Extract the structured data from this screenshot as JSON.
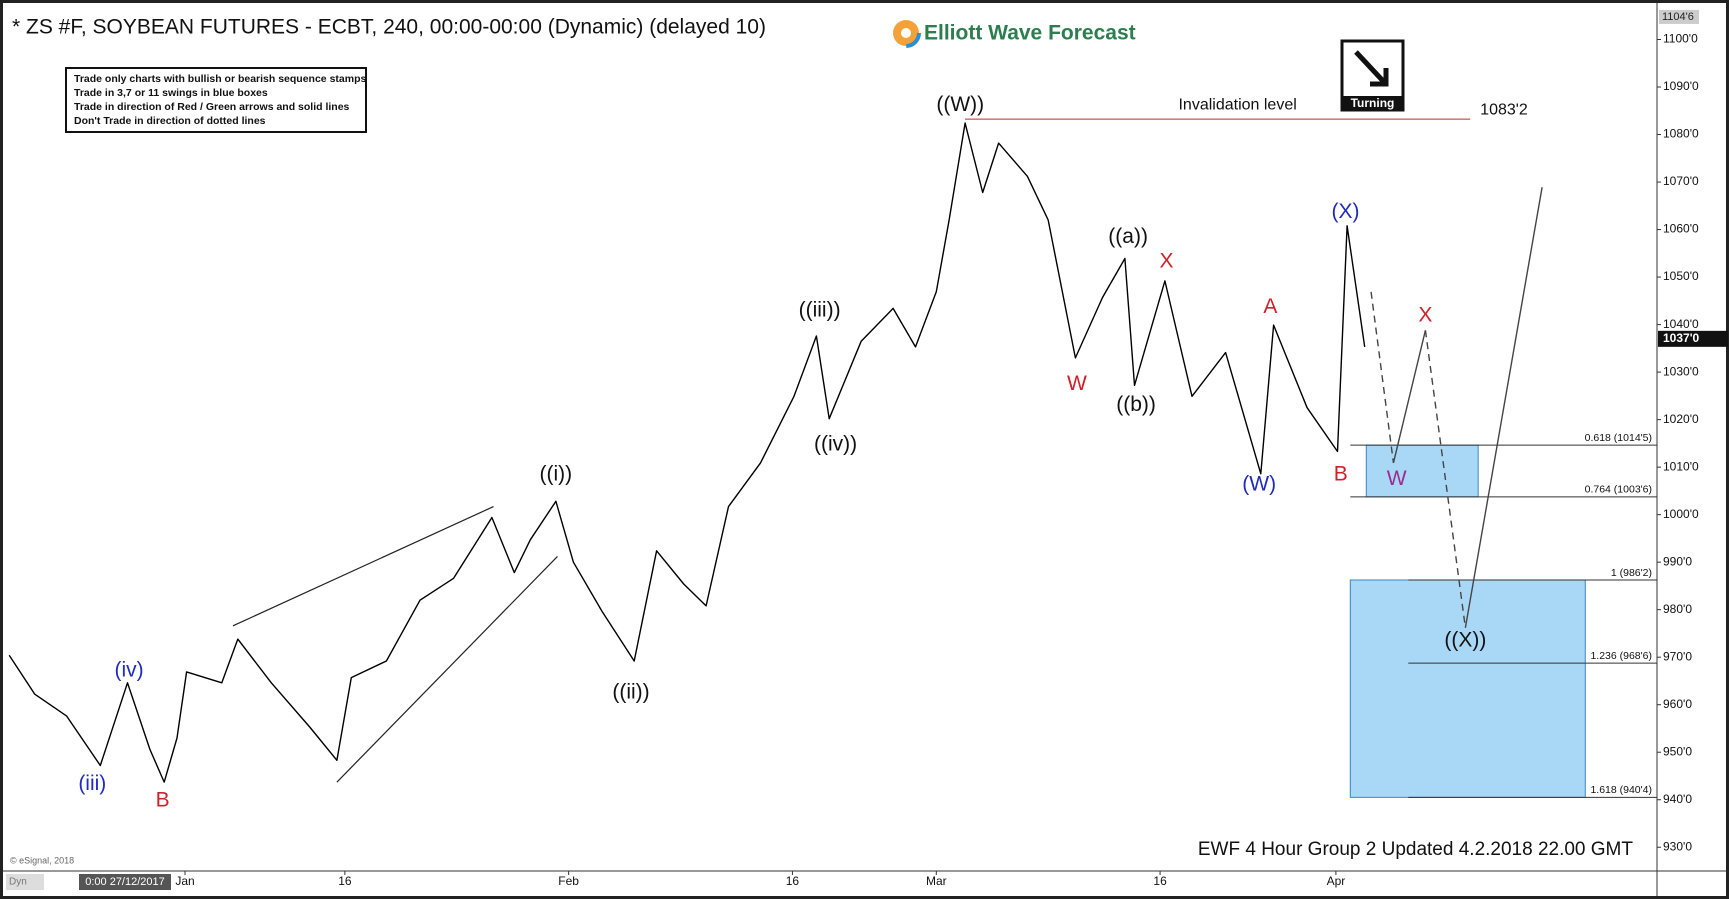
{
  "chart_data": {
    "type": "line",
    "title": "* ZS #F, SOYBEAN FUTURES - ECBT, 240, 00:00-00:00 (Dynamic) (delayed 10)",
    "logo": "Elliott Wave Forecast",
    "rules": [
      "Trade only charts with bullish or bearish sequence stamps",
      "Trade in 3,7 or 11 swings in blue boxes",
      "Trade in direction of Red / Green arrows and solid lines",
      "Don't Trade in direction of dotted lines"
    ],
    "badge": "Turning",
    "footer": "EWF 4 Hour Group 2 Updated 4.2.2018 22.00 GMT",
    "copyright": "© eSignal, 2018",
    "start_date": "0:00 27/12/2017",
    "mode": "Dyn",
    "color": "#000000",
    "x": [
      -11,
      -9.4,
      -7.4,
      -5.3,
      -3.6,
      -2.2,
      -1.3,
      -0.5,
      0.1,
      2.3,
      3.3,
      5.4,
      7.8,
      9.5,
      10.4,
      12.6,
      14.7,
      16.8,
      19.2,
      20.6,
      21.6,
      23.2,
      24.3,
      26.1,
      28.1,
      29.5,
      31.2,
      32.6,
      34,
      36,
      38.1,
      39.5,
      40.3,
      42.3,
      44.3,
      45.7,
      47,
      47.8,
      48.8,
      49.9,
      50.9,
      52.7,
      54,
      55.7,
      57.4,
      58.8,
      59.4,
      61.3,
      63,
      65.1,
      67.3,
      68.1,
      70.2,
      72.1,
      72.7,
      73.8
    ],
    "values": [
      970.4,
      962.2,
      957.6,
      947.2,
      964.6,
      950.6,
      943.7,
      953,
      966.9,
      964.6,
      973.8,
      964.6,
      955.3,
      948.3,
      965.7,
      969.2,
      982,
      986.6,
      999.4,
      987.8,
      994.7,
      1002.8,
      990,
      979.6,
      969.2,
      992.4,
      985.4,
      980.8,
      1001.7,
      1010.9,
      1024.9,
      1037.6,
      1020.2,
      1036.5,
      1043.4,
      1035.3,
      1046.9,
      1062,
      1082.4,
      1067.8,
      1078.2,
      1071.2,
      1062,
      1033,
      1045.7,
      1053.9,
      1027.2,
      1049.2,
      1024.9,
      1034.1,
      1008.6,
      1039.9,
      1022.5,
      1013.3,
      1060.8,
      1035.3
    ],
    "xlim": [
      -11.2,
      91.9
    ],
    "ylim": [
      925,
      1106
    ],
    "xticks": [
      {
        "value": 0,
        "label": "Jan"
      },
      {
        "value": 10,
        "label": "16"
      },
      {
        "value": 24,
        "label": "Feb"
      },
      {
        "value": 38,
        "label": "16"
      },
      {
        "value": 47,
        "label": "Mar"
      },
      {
        "value": 61,
        "label": "16"
      },
      {
        "value": 72,
        "label": "Apr"
      }
    ],
    "yticks": [
      {
        "value": 930,
        "label": "930'0"
      },
      {
        "value": 940,
        "label": "940'0"
      },
      {
        "value": 950,
        "label": "950'0"
      },
      {
        "value": 960,
        "label": "960'0"
      },
      {
        "value": 970,
        "label": "970'0"
      },
      {
        "value": 980,
        "label": "980'0"
      },
      {
        "value": 990,
        "label": "990'0"
      },
      {
        "value": 1000,
        "label": "1000'0"
      },
      {
        "value": 1010,
        "label": "1010'0"
      },
      {
        "value": 1020,
        "label": "1020'0"
      },
      {
        "value": 1030,
        "label": "1030'0"
      },
      {
        "value": 1040,
        "label": "1040'0"
      },
      {
        "value": 1050,
        "label": "1050'0"
      },
      {
        "value": 1060,
        "label": "1060'0"
      },
      {
        "value": 1070,
        "label": "1070'0"
      },
      {
        "value": 1080,
        "label": "1080'0"
      },
      {
        "value": 1090,
        "label": "1090'0"
      },
      {
        "value": 1100,
        "label": "1100'0"
      }
    ],
    "axis_top": {
      "value": 1104.75,
      "label": "1104'6"
    },
    "last_price": {
      "value": 1037,
      "label": "1037'0"
    },
    "invalidation": {
      "label": "Invalidation level",
      "value": 1083.25,
      "value_label": "1083'2",
      "x": [
        48.8,
        80.4
      ]
    },
    "fib_levels": [
      {
        "value": 1014.625,
        "label": "0.618 (1014'5)"
      },
      {
        "value": 1003.75,
        "label": "0.764 (1003'6)"
      },
      {
        "value": 986.25,
        "label": "1 (986'2)"
      },
      {
        "value": 968.75,
        "label": "1.236 (968'6)"
      },
      {
        "value": 940.5,
        "label": "1.618 (940'4)"
      }
    ],
    "boxes": [
      {
        "x": [
          73.9,
          80.9
        ],
        "y": [
          1003.75,
          1014.625
        ]
      },
      {
        "x": [
          72.9,
          87.6
        ],
        "y": [
          940.5,
          986.25
        ]
      }
    ],
    "projection": {
      "x": [
        74.2,
        75.6,
        77.6,
        80.1,
        84.9
      ],
      "values": [
        1046.9,
        1010.9,
        1038.8,
        976.2,
        1068.9
      ]
    },
    "wedge_lines": [
      {
        "x": [
          3,
          19.3
        ],
        "values": [
          976.6,
          1001.7
        ]
      },
      {
        "x": [
          9.5,
          23.3
        ],
        "values": [
          943.7,
          991.2
        ]
      }
    ],
    "annotations": [
      {
        "text": "(iii)",
        "x": -5.8,
        "y": 943.2,
        "color": "#1f2bbf"
      },
      {
        "text": "(iv)",
        "x": -3.5,
        "y": 967.1,
        "color": "#1f2bbf"
      },
      {
        "text": "B",
        "x": -1.4,
        "y": 939.7,
        "color": "#d0202a"
      },
      {
        "text": "((i))",
        "x": 23.2,
        "y": 1008.4,
        "color": "#111111"
      },
      {
        "text": "((ii))",
        "x": 27.9,
        "y": 962.5,
        "color": "#111111"
      },
      {
        "text": "((iii))",
        "x": 39.7,
        "y": 1042.9,
        "color": "#111111"
      },
      {
        "text": "((iv))",
        "x": 40.7,
        "y": 1014.7,
        "color": "#111111"
      },
      {
        "text": "((W))",
        "x": 48.5,
        "y": 1086.1,
        "color": "#111111"
      },
      {
        "text": "W",
        "x": 55.8,
        "y": 1027.4,
        "color": "#d0202a"
      },
      {
        "text": "((a))",
        "x": 59,
        "y": 1058.3,
        "color": "#111111"
      },
      {
        "text": "((b))",
        "x": 59.5,
        "y": 1023,
        "color": "#111111"
      },
      {
        "text": "X",
        "x": 61.4,
        "y": 1053.2,
        "color": "#d0202a"
      },
      {
        "text": "A",
        "x": 67.9,
        "y": 1043.6,
        "color": "#d0202a"
      },
      {
        "text": "(W)",
        "x": 67.2,
        "y": 1006.3,
        "color": "#1f2bbf"
      },
      {
        "text": "B",
        "x": 72.3,
        "y": 1008.4,
        "color": "#d0202a"
      },
      {
        "text": "(X)",
        "x": 72.6,
        "y": 1063.6,
        "color": "#1f2bbf"
      },
      {
        "text": "X",
        "x": 77.6,
        "y": 1041.8,
        "color": "#d0202a"
      },
      {
        "text": "W",
        "x": 75.8,
        "y": 1007.4,
        "color": "#9b2d8f"
      },
      {
        "text": "((X))",
        "x": 80.1,
        "y": 973.4,
        "color": "#111111"
      }
    ]
  }
}
